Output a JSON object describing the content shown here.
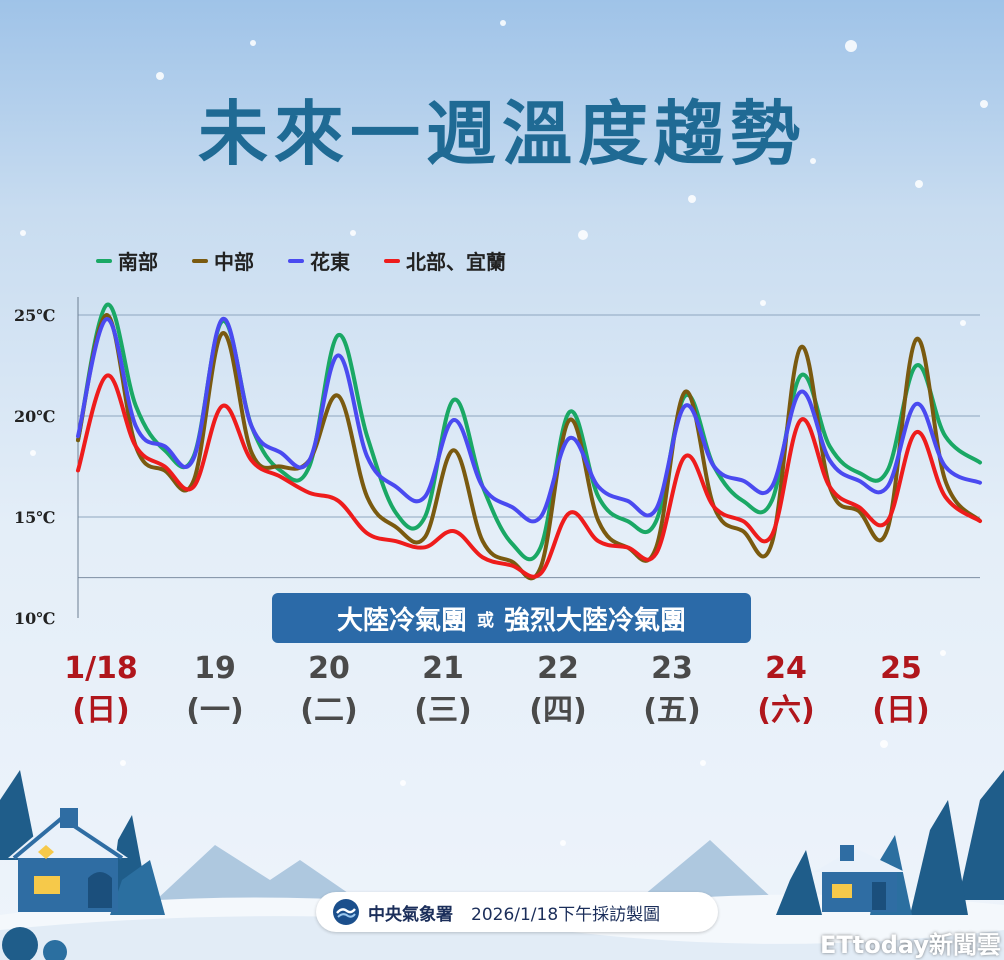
{
  "title": "未來一週溫度趨勢",
  "legend": [
    {
      "name": "南部",
      "color": "#1aa865"
    },
    {
      "name": "中部",
      "color": "#7a5a10"
    },
    {
      "name": "花東",
      "color": "#4a4af0"
    },
    {
      "name": "北部、宜蘭",
      "color": "#ee1c1c"
    }
  ],
  "days": [
    {
      "date": "1/18",
      "weekday": "(日)",
      "holiday": true
    },
    {
      "date": "19",
      "weekday": "(一)",
      "holiday": false
    },
    {
      "date": "20",
      "weekday": "(二)",
      "holiday": false
    },
    {
      "date": "21",
      "weekday": "(三)",
      "holiday": false
    },
    {
      "date": "22",
      "weekday": "(四)",
      "holiday": false
    },
    {
      "date": "23",
      "weekday": "(五)",
      "holiday": false
    },
    {
      "date": "24",
      "weekday": "(六)",
      "holiday": true
    },
    {
      "date": "25",
      "weekday": "(日)",
      "holiday": true
    }
  ],
  "note": {
    "part1": "大陸冷氣團",
    "connector": "或",
    "part2": "強烈大陸冷氣團"
  },
  "footer": {
    "agency": "中央氣象署",
    "text": "2026/1/18下午採訪製圖"
  },
  "watermark": "ETtoday新聞雲",
  "chart_data": {
    "type": "line",
    "ylim": [
      10,
      25.5
    ],
    "yticks": [
      "25℃",
      "20℃",
      "15℃",
      "10℃"
    ],
    "ytick_values": [
      25,
      20,
      15,
      10
    ],
    "x_range": [
      0,
      7.8
    ],
    "series": [
      {
        "name": "南部",
        "color": "#1aa865",
        "x": [
          0,
          0.25,
          0.5,
          0.75,
          1.0,
          1.25,
          1.5,
          1.75,
          2.0,
          2.25,
          2.5,
          2.75,
          3.0,
          3.25,
          3.5,
          3.75,
          4.0,
          4.25,
          4.5,
          4.75,
          5.0,
          5.25,
          5.5,
          5.75,
          6.0,
          6.25,
          6.5,
          6.75,
          7.0,
          7.25,
          7.5,
          7.8
        ],
        "y": [
          18.8,
          25.5,
          20.5,
          18.3,
          18.0,
          24.7,
          19.5,
          17.3,
          17.5,
          24.0,
          19.0,
          15.2,
          15.0,
          20.8,
          16.5,
          13.7,
          13.5,
          20.2,
          16.0,
          14.8,
          14.8,
          21.0,
          17.5,
          15.8,
          15.8,
          22.0,
          18.5,
          17.2,
          17.3,
          22.5,
          19.0,
          17.7
        ]
      },
      {
        "name": "中部",
        "color": "#7a5a10",
        "x": [
          0,
          0.25,
          0.5,
          0.75,
          1.0,
          1.25,
          1.5,
          1.75,
          2.0,
          2.25,
          2.5,
          2.75,
          3.0,
          3.25,
          3.5,
          3.75,
          4.0,
          4.25,
          4.5,
          4.75,
          5.0,
          5.25,
          5.5,
          5.75,
          6.0,
          6.25,
          6.5,
          6.75,
          7.0,
          7.25,
          7.5,
          7.8
        ],
        "y": [
          18.8,
          25.0,
          18.5,
          17.3,
          16.8,
          24.1,
          18.2,
          17.5,
          17.8,
          21.0,
          16.0,
          14.5,
          14.0,
          18.3,
          13.8,
          12.8,
          12.5,
          19.8,
          14.8,
          13.5,
          13.5,
          21.2,
          15.5,
          14.3,
          13.7,
          23.4,
          16.5,
          15.3,
          14.4,
          23.8,
          16.8,
          14.8
        ]
      },
      {
        "name": "花東",
        "color": "#4a4af0",
        "x": [
          0,
          0.25,
          0.5,
          0.75,
          1.0,
          1.25,
          1.5,
          1.75,
          2.0,
          2.25,
          2.5,
          2.75,
          3.0,
          3.25,
          3.5,
          3.75,
          4.0,
          4.25,
          4.5,
          4.75,
          5.0,
          5.25,
          5.5,
          5.75,
          6.0,
          6.25,
          6.5,
          6.75,
          7.0,
          7.25,
          7.5,
          7.8
        ],
        "y": [
          19.0,
          24.8,
          19.5,
          18.5,
          17.9,
          24.8,
          19.5,
          18.2,
          17.8,
          23.0,
          18.0,
          16.5,
          16.0,
          19.8,
          16.5,
          15.5,
          15.0,
          18.9,
          16.5,
          15.8,
          15.4,
          20.5,
          17.5,
          16.8,
          16.5,
          21.2,
          17.8,
          16.8,
          16.5,
          20.6,
          17.5,
          16.7
        ]
      },
      {
        "name": "北部、宜蘭",
        "color": "#ee1c1c",
        "x": [
          0,
          0.25,
          0.5,
          0.75,
          1.0,
          1.25,
          1.5,
          1.75,
          2.0,
          2.25,
          2.5,
          2.75,
          3.0,
          3.25,
          3.5,
          3.75,
          4.0,
          4.25,
          4.5,
          4.75,
          5.0,
          5.25,
          5.5,
          5.75,
          6.0,
          6.25,
          6.5,
          6.75,
          7.0,
          7.25,
          7.5,
          7.8
        ],
        "y": [
          17.3,
          22.0,
          18.5,
          17.5,
          16.5,
          20.5,
          17.8,
          17.0,
          16.2,
          15.8,
          14.2,
          13.8,
          13.5,
          14.3,
          13.0,
          12.6,
          12.2,
          15.2,
          13.8,
          13.5,
          13.2,
          18.0,
          15.5,
          14.8,
          14.1,
          19.8,
          16.5,
          15.5,
          14.8,
          19.2,
          16.0,
          14.8
        ]
      }
    ]
  }
}
